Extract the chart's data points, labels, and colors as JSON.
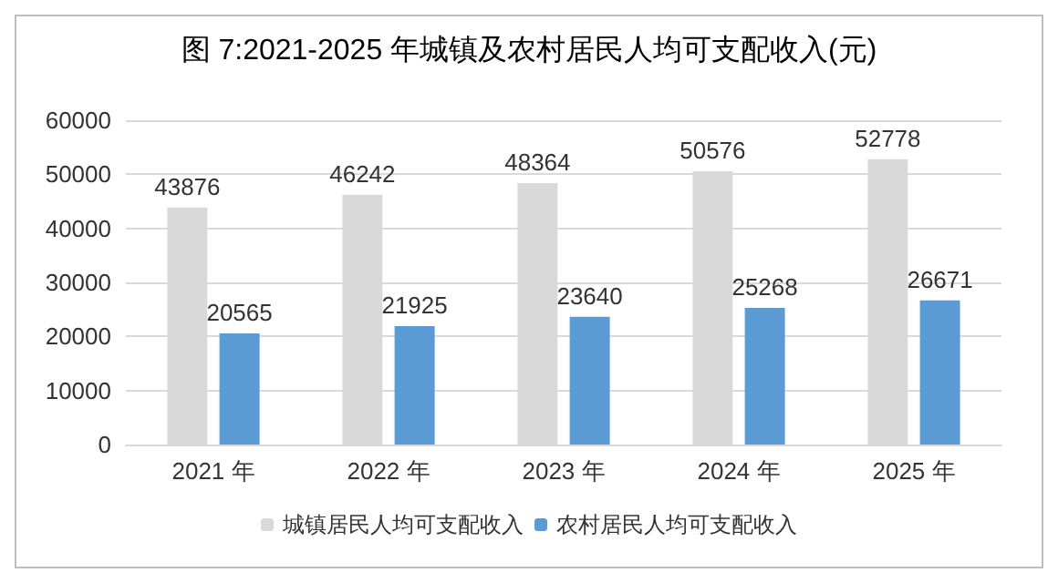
{
  "chart_data": {
    "type": "bar",
    "title": "图 7:2021-2025 年城镇及农村居民人均可支配收入(元)",
    "categories": [
      "2021 年",
      "2022 年",
      "2023 年",
      "2024 年",
      "2025 年"
    ],
    "series": [
      {
        "name": "城镇居民人均可支配收入",
        "color": "#d9d9d9",
        "values": [
          43876,
          46242,
          48364,
          50576,
          52778
        ]
      },
      {
        "name": "农村居民人均可支配收入",
        "color": "#5b9bd5",
        "values": [
          20565,
          21925,
          23640,
          25268,
          26671
        ]
      }
    ],
    "ylim": [
      0,
      60000
    ],
    "yticks": [
      0,
      10000,
      20000,
      30000,
      40000,
      50000,
      60000
    ],
    "grid": "y",
    "legend": "bottom",
    "data_labels": true
  }
}
